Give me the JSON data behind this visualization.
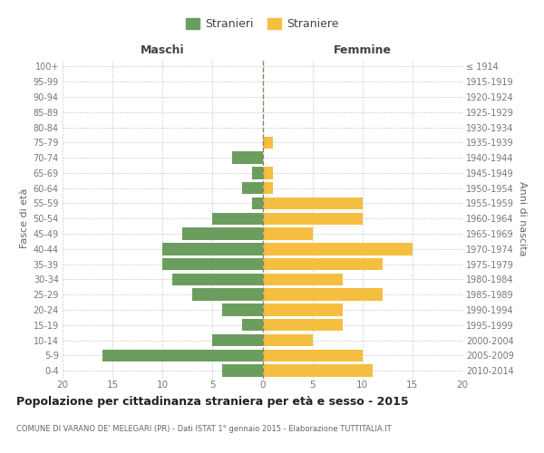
{
  "age_groups": [
    "0-4",
    "5-9",
    "10-14",
    "15-19",
    "20-24",
    "25-29",
    "30-34",
    "35-39",
    "40-44",
    "45-49",
    "50-54",
    "55-59",
    "60-64",
    "65-69",
    "70-74",
    "75-79",
    "80-84",
    "85-89",
    "90-94",
    "95-99",
    "100+"
  ],
  "birth_years": [
    "2010-2014",
    "2005-2009",
    "2000-2004",
    "1995-1999",
    "1990-1994",
    "1985-1989",
    "1980-1984",
    "1975-1979",
    "1970-1974",
    "1965-1969",
    "1960-1964",
    "1955-1959",
    "1950-1954",
    "1945-1949",
    "1940-1944",
    "1935-1939",
    "1930-1934",
    "1925-1929",
    "1920-1924",
    "1915-1919",
    "≤ 1914"
  ],
  "males": [
    4,
    16,
    5,
    2,
    4,
    7,
    9,
    10,
    10,
    8,
    5,
    1,
    2,
    1,
    3,
    0,
    0,
    0,
    0,
    0,
    0
  ],
  "females": [
    11,
    10,
    5,
    8,
    8,
    12,
    8,
    12,
    15,
    5,
    10,
    10,
    1,
    1,
    0,
    1,
    0,
    0,
    0,
    0,
    0
  ],
  "color_males": "#6b9e5e",
  "color_females": "#f5be41",
  "title": "Popolazione per cittadinanza straniera per età e sesso - 2015",
  "subtitle": "COMUNE DI VARANO DE' MELEGARI (PR) - Dati ISTAT 1° gennaio 2015 - Elaborazione TUTTITALIA.IT",
  "label_maschi": "Maschi",
  "label_femmine": "Femmine",
  "ylabel_left": "Fasce di età",
  "ylabel_right": "Anni di nascita",
  "legend_males": "Stranieri",
  "legend_females": "Straniere",
  "xlim": 20,
  "bg_color": "#ffffff",
  "grid_color": "#cccccc"
}
